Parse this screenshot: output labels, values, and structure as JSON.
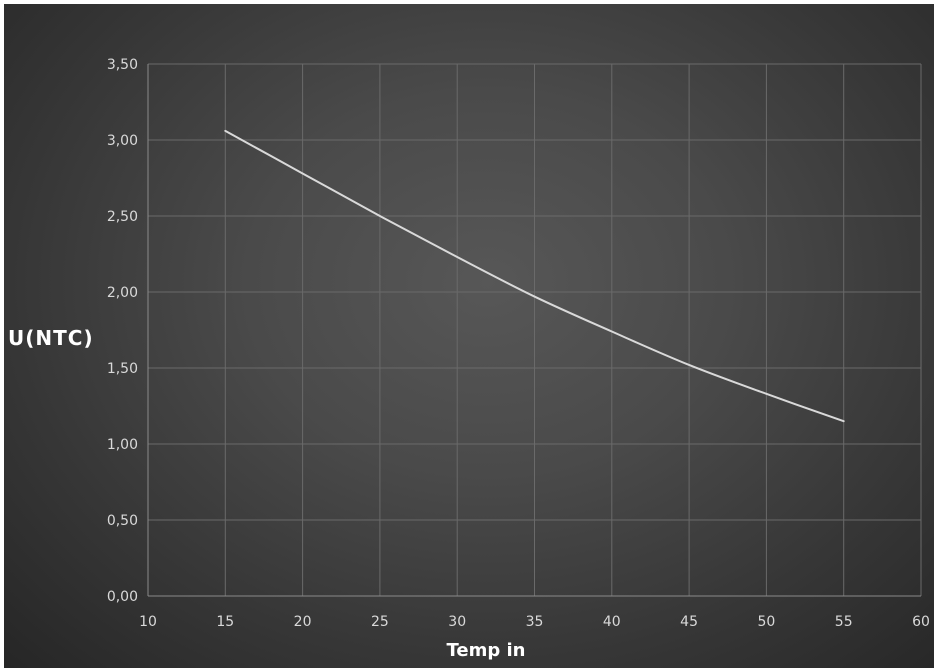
{
  "chart_data": {
    "type": "line",
    "title": "",
    "xlabel": "Temp in",
    "ylabel": "U(NTC)",
    "xlim": [
      10,
      60
    ],
    "ylim": [
      0,
      3.5
    ],
    "x_ticks": [
      "10",
      "15",
      "20",
      "25",
      "30",
      "35",
      "40",
      "45",
      "50",
      "55",
      "60"
    ],
    "y_ticks": [
      "0,00",
      "0,50",
      "1,00",
      "1,50",
      "2,00",
      "2,50",
      "3,00",
      "3,50"
    ],
    "grid": true,
    "legend": "none",
    "series": [
      {
        "x": [
          15,
          20,
          25,
          30,
          35,
          40,
          45,
          50,
          55
        ],
        "y": [
          3.06,
          2.78,
          2.5,
          2.23,
          1.97,
          1.74,
          1.52,
          1.33,
          1.15
        ]
      }
    ],
    "colors": {
      "line": "#d9d9d9",
      "grid": "#6a6a6a",
      "tick_text": "#d9d9d9",
      "title_text": "#ffffff"
    }
  }
}
